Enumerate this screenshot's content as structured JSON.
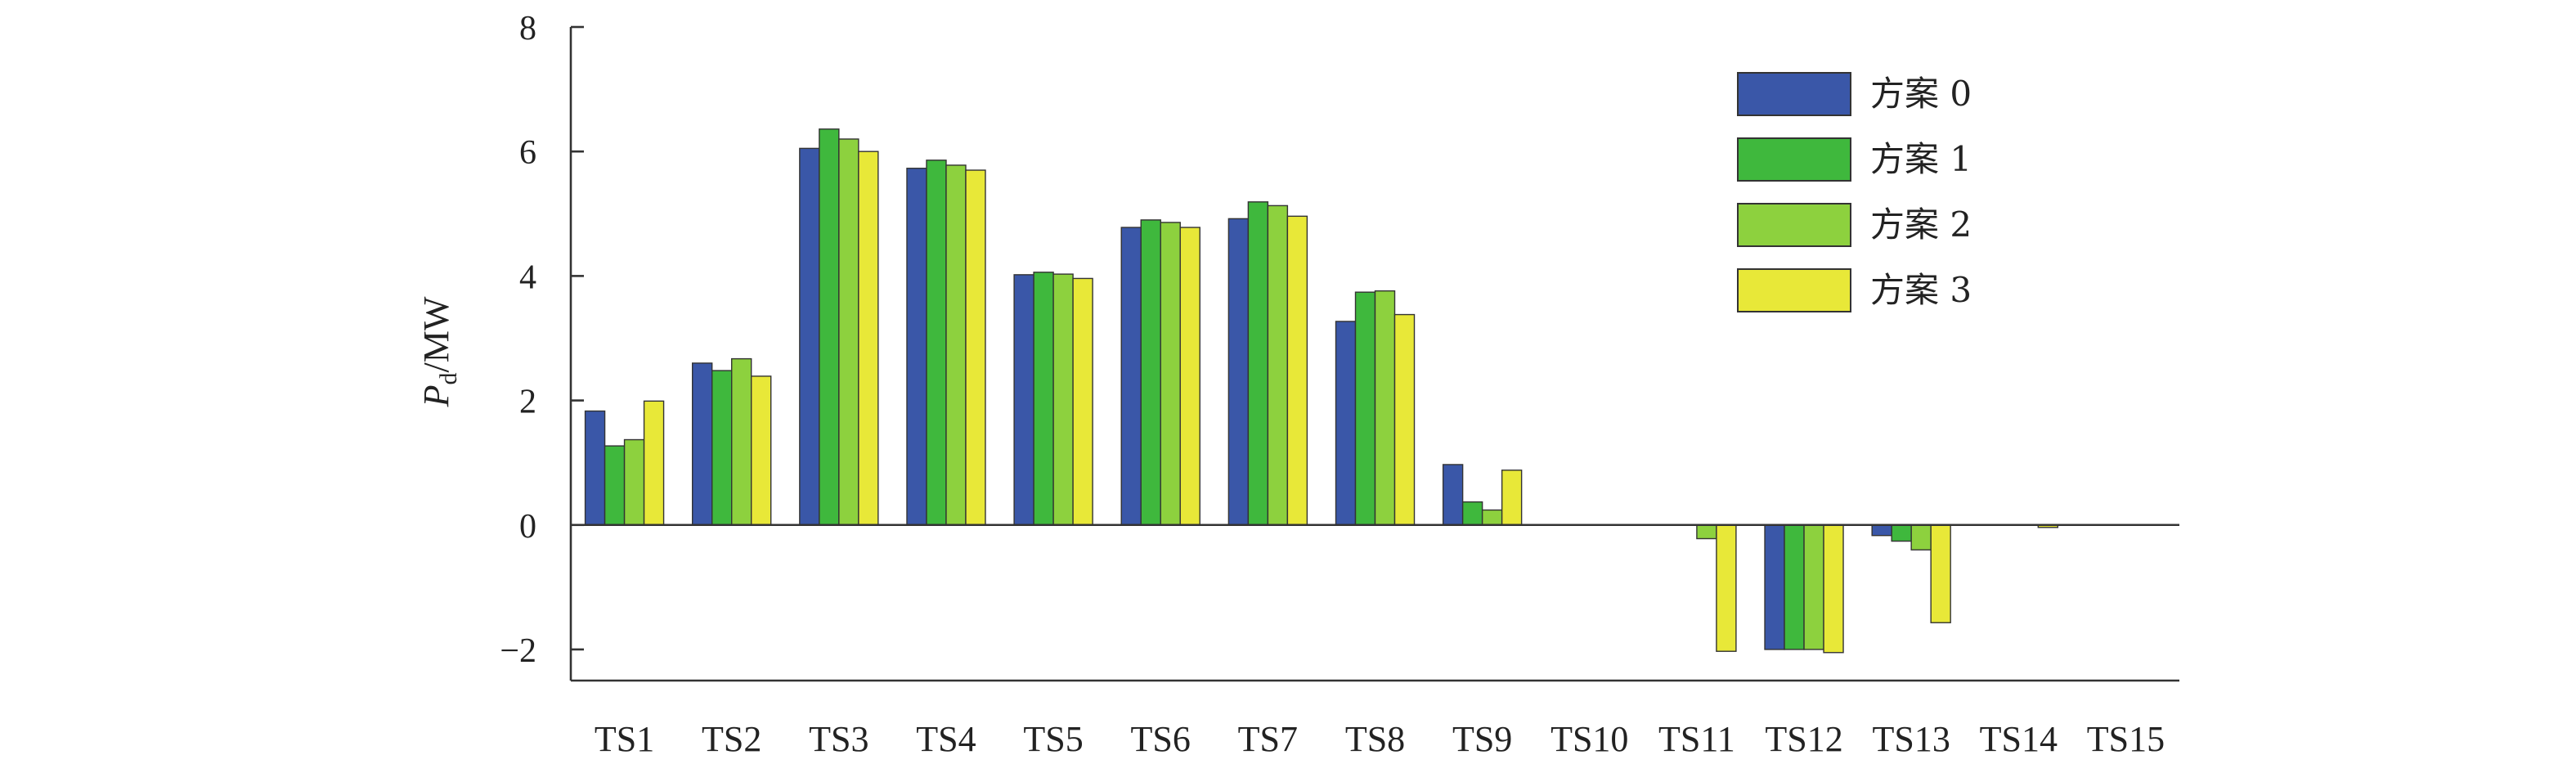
{
  "chart_data": {
    "type": "bar",
    "title": "",
    "xlabel": "",
    "ylabel": {
      "main": "P",
      "sub": "d",
      "unit": "/MW"
    },
    "ylim": [
      -2.5,
      8
    ],
    "yticks": [
      -2,
      0,
      2,
      4,
      6,
      8
    ],
    "ytick_labels": [
      "−2",
      "0",
      "2",
      "4",
      "6",
      "8"
    ],
    "grid": false,
    "legend_position": "top-right",
    "categories": [
      "TS1",
      "TS2",
      "TS3",
      "TS4",
      "TS5",
      "TS6",
      "TS7",
      "TS8",
      "TS9",
      "TS10",
      "TS11",
      "TS12",
      "TS13",
      "TS14",
      "TS15"
    ],
    "series": [
      {
        "name": "方案 0",
        "color": "#3a57a8",
        "values": [
          1.83,
          2.6,
          6.05,
          5.73,
          4.02,
          4.78,
          4.92,
          3.27,
          0.97,
          0,
          0,
          -2.0,
          -0.17,
          0,
          0
        ]
      },
      {
        "name": "方案 1",
        "color": "#3fb83d",
        "values": [
          1.27,
          2.48,
          6.36,
          5.86,
          4.06,
          4.9,
          5.19,
          3.74,
          0.37,
          0,
          0,
          -2.0,
          -0.26,
          0,
          0
        ]
      },
      {
        "name": "方案 2",
        "color": "#8dd13e",
        "values": [
          1.37,
          2.67,
          6.2,
          5.78,
          4.03,
          4.86,
          5.13,
          3.76,
          0.24,
          0,
          -0.22,
          -2.0,
          -0.4,
          0,
          0
        ]
      },
      {
        "name": "方案 3",
        "color": "#e8e838",
        "values": [
          1.99,
          2.39,
          6.0,
          5.7,
          3.96,
          4.78,
          4.96,
          3.38,
          0.88,
          0,
          -2.03,
          -2.05,
          -1.57,
          -0.04,
          0
        ]
      }
    ]
  }
}
